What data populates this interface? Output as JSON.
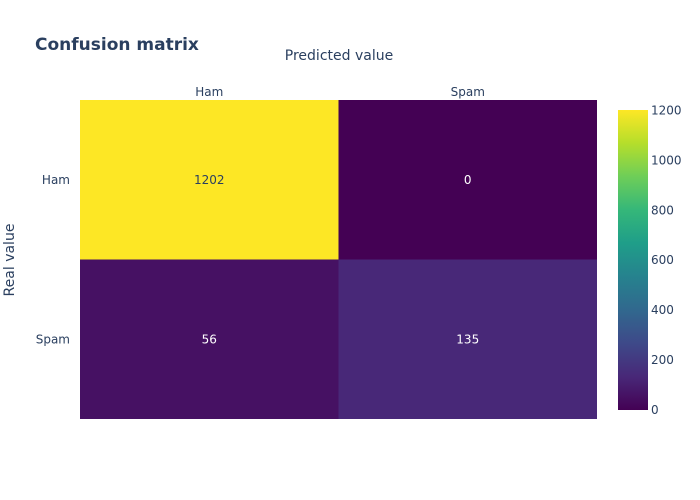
{
  "chart_data": {
    "type": "heatmap",
    "title": "Confusion matrix",
    "xlabel": "Predicted value",
    "ylabel": "Real value",
    "x_categories": [
      "Ham",
      "Spam"
    ],
    "y_categories": [
      "Ham",
      "Spam"
    ],
    "z": [
      [
        1202,
        0
      ],
      [
        56,
        135
      ]
    ],
    "colorscale": "viridis",
    "colorbar": {
      "range": [
        0,
        1202
      ],
      "ticks": [
        0,
        200,
        400,
        600,
        800,
        1000,
        1200
      ]
    },
    "x_axis_side": "top",
    "grid": false
  }
}
